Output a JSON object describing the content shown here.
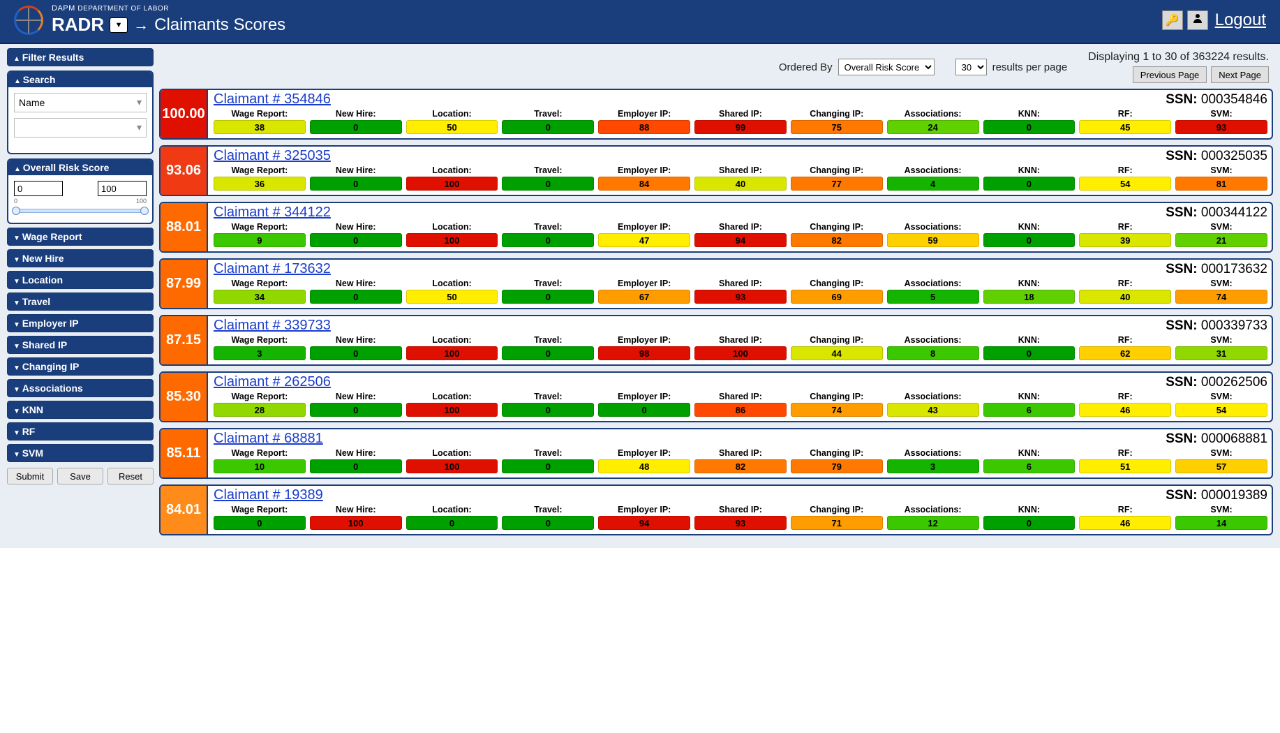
{
  "header": {
    "dept_prefix": "DAPM",
    "dept_suffix": "DEPARTMENT OF LABOR",
    "app_name": "RADR",
    "page_name": "Claimants Scores",
    "logout": "Logout"
  },
  "sidebar": {
    "filter_title": "Filter Results",
    "search": {
      "title": "Search",
      "field_selected": "Name",
      "value_selected": ""
    },
    "overall": {
      "title": "Overall Risk Score",
      "min": "0",
      "max": "100",
      "scale_min": "0",
      "scale_max": "100"
    },
    "accordions": [
      "Wage Report",
      "New Hire",
      "Location",
      "Travel",
      "Employer IP",
      "Shared IP",
      "Changing IP",
      "Associations",
      "KNN",
      "RF",
      "SVM"
    ],
    "buttons": {
      "submit": "Submit",
      "save": "Save",
      "reset": "Reset"
    }
  },
  "controls": {
    "ordered_by_label": "Ordered By",
    "ordered_by_value": "Overall Risk Score",
    "per_page_value": "30",
    "per_page_suffix": "results per page",
    "paging_info": "Displaying 1 to 30 of 363224 results.",
    "prev": "Previous Page",
    "next": "Next Page"
  },
  "metric_labels": [
    "Wage Report:",
    "New Hire:",
    "Location:",
    "Travel:",
    "Employer IP:",
    "Shared IP:",
    "Changing IP:",
    "Associations:",
    "KNN:",
    "RF:",
    "SVM:"
  ],
  "score_colors": {
    "stops": [
      {
        "max": 0,
        "bg": "#00a000"
      },
      {
        "max": 5,
        "bg": "#14b400"
      },
      {
        "max": 14,
        "bg": "#3cc800"
      },
      {
        "max": 24,
        "bg": "#60d000"
      },
      {
        "max": 34,
        "bg": "#90d800"
      },
      {
        "max": 44,
        "bg": "#d8e600"
      },
      {
        "max": 54,
        "bg": "#ffee00"
      },
      {
        "max": 64,
        "bg": "#ffd000"
      },
      {
        "max": 74,
        "bg": "#ff9c00"
      },
      {
        "max": 84,
        "bg": "#ff7800"
      },
      {
        "max": 92,
        "bg": "#ff4800"
      },
      {
        "max": 100,
        "bg": "#e01000"
      }
    ]
  },
  "overall_score_colors": {
    "stops": [
      {
        "max": 84.99,
        "bg": "#ff8c1a"
      },
      {
        "max": 89.99,
        "bg": "#ff6a00"
      },
      {
        "max": 94.99,
        "bg": "#f03a14"
      },
      {
        "max": 100,
        "bg": "#e01000"
      }
    ]
  },
  "results": [
    {
      "id": "354846",
      "ssn": "000354846",
      "score": "100.00",
      "vals": [
        38,
        0,
        50,
        0,
        88,
        99,
        75,
        24,
        0,
        45,
        93
      ]
    },
    {
      "id": "325035",
      "ssn": "000325035",
      "score": "93.06",
      "vals": [
        36,
        0,
        100,
        0,
        84,
        40,
        77,
        4,
        0,
        54,
        81
      ]
    },
    {
      "id": "344122",
      "ssn": "000344122",
      "score": "88.01",
      "vals": [
        9,
        0,
        100,
        0,
        47,
        94,
        82,
        59,
        0,
        39,
        21
      ]
    },
    {
      "id": "173632",
      "ssn": "000173632",
      "score": "87.99",
      "vals": [
        34,
        0,
        50,
        0,
        67,
        93,
        69,
        5,
        18,
        40,
        74
      ]
    },
    {
      "id": "339733",
      "ssn": "000339733",
      "score": "87.15",
      "vals": [
        3,
        0,
        100,
        0,
        98,
        100,
        44,
        8,
        0,
        62,
        31
      ]
    },
    {
      "id": "262506",
      "ssn": "000262506",
      "score": "85.30",
      "vals": [
        28,
        0,
        100,
        0,
        0,
        86,
        74,
        43,
        6,
        46,
        54
      ]
    },
    {
      "id": "68881",
      "ssn": "000068881",
      "score": "85.11",
      "vals": [
        10,
        0,
        100,
        0,
        48,
        82,
        79,
        3,
        6,
        51,
        57
      ]
    },
    {
      "id": "19389",
      "ssn": "000019389",
      "score": "84.01",
      "vals": [
        0,
        100,
        0,
        0,
        94,
        93,
        71,
        12,
        0,
        46,
        14
      ]
    }
  ]
}
